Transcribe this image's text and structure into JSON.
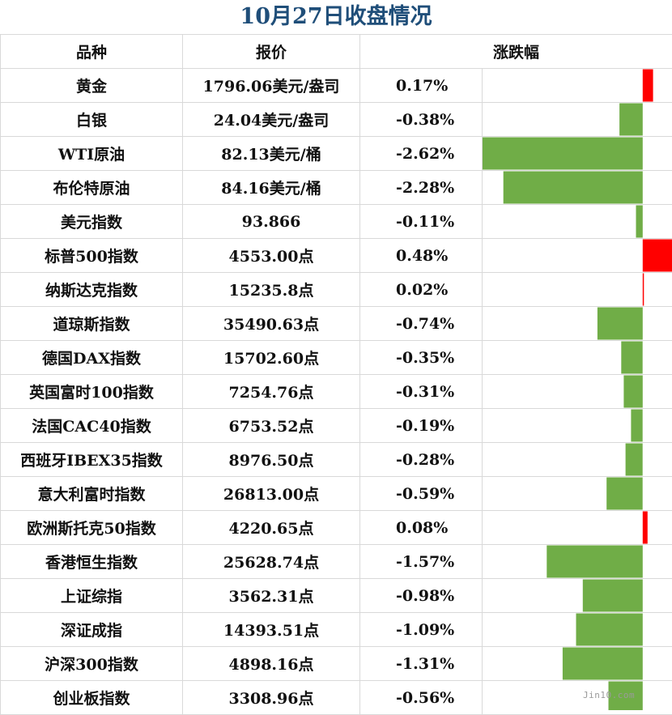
{
  "title": "10月27日收盘情况",
  "headers": {
    "name": "品种",
    "price": "报价",
    "change": "涨跌幅"
  },
  "colors": {
    "up": "#ff0000",
    "down": "#70ad47",
    "title": "#1f4e79"
  },
  "watermark": "Jin10.com",
  "rows": [
    {
      "name": "黄金",
      "price": "1796.06美元/盎司",
      "change": "0.17%"
    },
    {
      "name": "白银",
      "price": "24.04美元/盎司",
      "change": "-0.38%"
    },
    {
      "name": "WTI原油",
      "price": "82.13美元/桶",
      "change": "-2.62%"
    },
    {
      "name": "布伦特原油",
      "price": "84.16美元/桶",
      "change": "-2.28%"
    },
    {
      "name": "美元指数",
      "price": "93.866",
      "change": "-0.11%"
    },
    {
      "name": "标普500指数",
      "price": "4553.00点",
      "change": "0.48%"
    },
    {
      "name": "纳斯达克指数",
      "price": "15235.8点",
      "change": "0.02%"
    },
    {
      "name": "道琼斯指数",
      "price": "35490.63点",
      "change": "-0.74%"
    },
    {
      "name": "德国DAX指数",
      "price": "15702.60点",
      "change": "-0.35%"
    },
    {
      "name": "英国富时100指数",
      "price": "7254.76点",
      "change": "-0.31%"
    },
    {
      "name": "法国CAC40指数",
      "price": "6753.52点",
      "change": "-0.19%"
    },
    {
      "name": "西班牙IBEX35指数",
      "price": "8976.50点",
      "change": "-0.28%"
    },
    {
      "name": "意大利富时指数",
      "price": "26813.00点",
      "change": "-0.59%"
    },
    {
      "name": "欧洲斯托克50指数",
      "price": "4220.65点",
      "change": "0.08%"
    },
    {
      "name": "香港恒生指数",
      "price": "25628.74点",
      "change": "-1.57%"
    },
    {
      "name": "上证综指",
      "price": "3562.31点",
      "change": "-0.98%"
    },
    {
      "name": "深证成指",
      "price": "14393.51点",
      "change": "-1.09%"
    },
    {
      "name": "沪深300指数",
      "price": "4898.16点",
      "change": "-1.31%"
    },
    {
      "name": "创业板指数",
      "price": "3308.96点",
      "change": "-0.56%"
    }
  ],
  "chart_data": {
    "type": "bar",
    "orientation": "horizontal",
    "categories": [
      "黄金",
      "白银",
      "WTI原油",
      "布伦特原油",
      "美元指数",
      "标普500指数",
      "纳斯达克指数",
      "道琼斯指数",
      "德国DAX指数",
      "英国富时100指数",
      "法国CAC40指数",
      "西班牙IBEX35指数",
      "意大利富时指数",
      "欧洲斯托克50指数",
      "香港恒生指数",
      "上证综指",
      "深证成指",
      "沪深300指数",
      "创业板指数"
    ],
    "values": [
      0.17,
      -0.38,
      -2.62,
      -2.28,
      -0.11,
      0.48,
      0.02,
      -0.74,
      -0.35,
      -0.31,
      -0.19,
      -0.28,
      -0.59,
      0.08,
      -1.57,
      -0.98,
      -1.09,
      -1.31,
      -0.56
    ],
    "xlim": [
      -2.62,
      0.48
    ],
    "positive_color": "#ff0000",
    "negative_color": "#70ad47",
    "grid": false
  }
}
